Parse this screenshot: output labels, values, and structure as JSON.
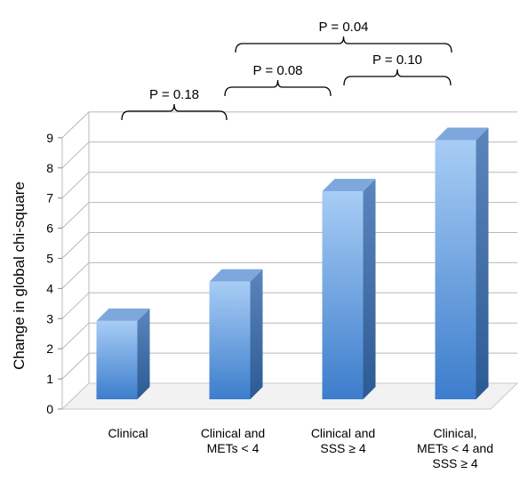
{
  "chart_data": {
    "type": "bar",
    "title": "",
    "xlabel": "",
    "ylabel": "Change in global chi-square",
    "ylim": [
      0,
      9
    ],
    "yticks": [
      0,
      1,
      2,
      3,
      4,
      5,
      6,
      7,
      8,
      9
    ],
    "grid": true,
    "style": "3d-column",
    "bar_color": "#5b9bd5",
    "categories": [
      [
        "Clinical"
      ],
      [
        "Clinical and",
        "METs < 4"
      ],
      [
        "Clinical and",
        "SSS ≥ 4"
      ],
      [
        "Clinical,",
        "METs < 4 and",
        "SSS ≥ 4"
      ]
    ],
    "values": [
      2.6,
      3.9,
      6.9,
      8.6
    ],
    "comparisons": [
      {
        "from": 0,
        "to": 1,
        "label": "P = 0.18"
      },
      {
        "from": 1,
        "to": 2,
        "label": "P = 0.08"
      },
      {
        "from": 2,
        "to": 3,
        "label": "P = 0.10"
      },
      {
        "from": 1,
        "to": 3,
        "label": "P = 0.04"
      }
    ]
  }
}
